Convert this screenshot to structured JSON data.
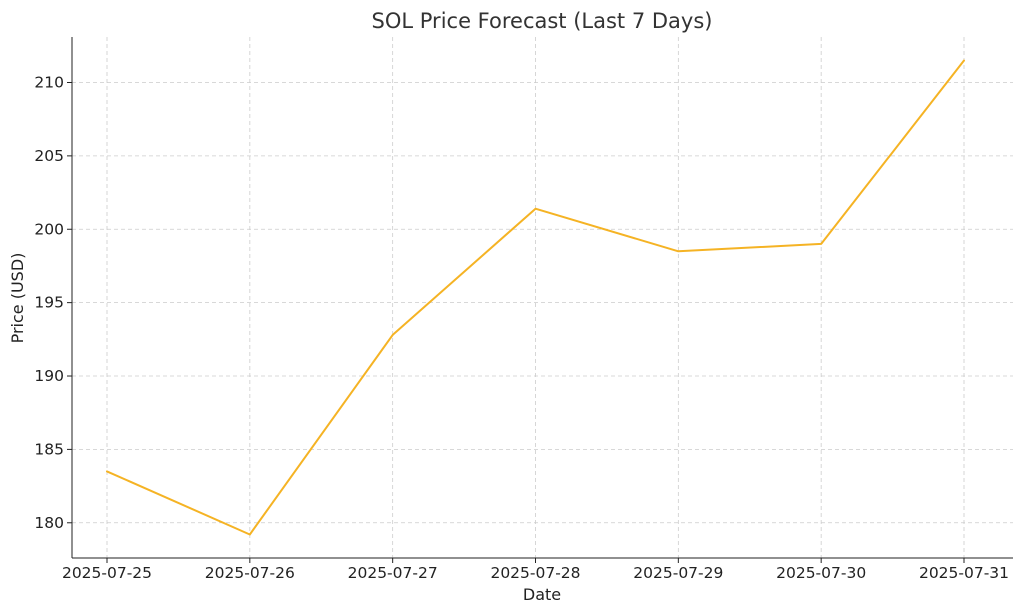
{
  "chart_data": {
    "type": "line",
    "title": "SOL Price Forecast (Last 7 Days)",
    "xlabel": "Date",
    "ylabel": "Price (USD)",
    "categories": [
      "2025-07-25",
      "2025-07-26",
      "2025-07-27",
      "2025-07-28",
      "2025-07-29",
      "2025-07-30",
      "2025-07-31"
    ],
    "series": [
      {
        "values": [
          183.5,
          179.2,
          192.8,
          201.4,
          198.5,
          199.0,
          211.5
        ],
        "color": "#f5b324"
      }
    ],
    "ylim": [
      177.6,
      213.1
    ],
    "yticks": [
      180,
      185,
      190,
      195,
      200,
      205,
      210
    ],
    "grid": true,
    "legend": "none"
  }
}
